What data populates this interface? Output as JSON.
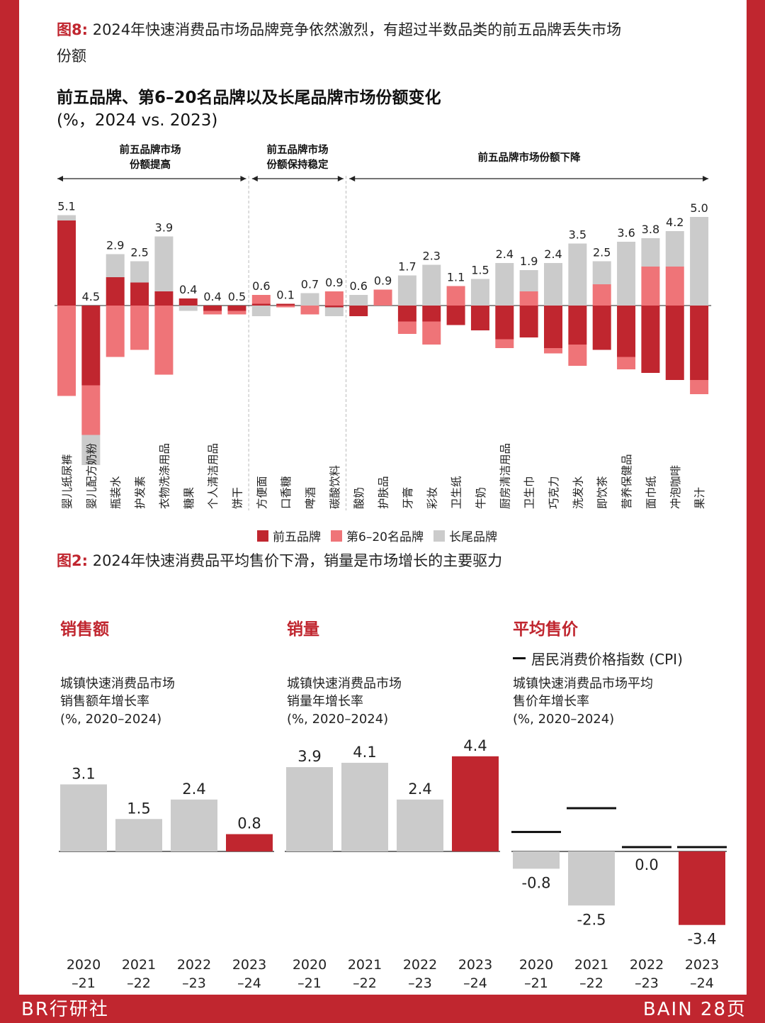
{
  "figure8": {
    "fig_num": "图8:",
    "title_line1": "2024年快速消费品市场品牌竞争依然激烈，有超过半数品类的前五品牌丢失市场",
    "title_line2": "份额",
    "chart_title": "前五品牌、第6–20名品牌以及长尾品牌市场份额变化",
    "chart_subtitle": "(%，2024 vs. 2023)",
    "sections": [
      {
        "line1": "前五品牌市场",
        "line2": "份额提高"
      },
      {
        "line1": "前五品牌市场",
        "line2": "份额保持稳定"
      },
      {
        "line1": "前五品牌市场份额下降",
        "line2": ""
      }
    ],
    "legend": [
      "前五品牌",
      "第6–20名品牌",
      "长尾品牌"
    ]
  },
  "chart_data": [
    {
      "type": "bar",
      "stacked": true,
      "title": "前五品牌、第6–20名品牌以及长尾品牌市场份额变化",
      "subtitle": "(%，2024 vs. 2023)",
      "categories": [
        "婴儿纸尿裤",
        "婴儿配方奶粉",
        "瓶装水",
        "护发素",
        "衣物洗涤用品",
        "糖果",
        "个人清洁用品",
        "饼干",
        "方便面",
        "口香糖",
        "啤酒",
        "碳酸饮料",
        "酸奶",
        "护肤品",
        "牙膏",
        "彩妆",
        "卫生纸",
        "牛奶",
        "厨房清洁用品",
        "卫生巾",
        "巧克力",
        "洗发水",
        "即饮茶",
        "营养保健品",
        "面巾纸",
        "冲泡咖啡",
        "果汁"
      ],
      "gain_labels": [
        5.1,
        4.5,
        2.9,
        2.5,
        3.9,
        0.4,
        0.4,
        0.5,
        0.6,
        0.1,
        0.7,
        0.9,
        0.6,
        0.9,
        1.7,
        2.3,
        1.1,
        1.5,
        2.4,
        1.9,
        2.4,
        3.5,
        2.5,
        3.6,
        3.8,
        4.2,
        5.0
      ],
      "series": [
        {
          "name": "前五品牌",
          "color": "#c0262f",
          "values": [
            4.8,
            -4.5,
            1.6,
            1.3,
            0.8,
            0.4,
            -0.3,
            -0.3,
            0.1,
            0.1,
            0,
            -0.1,
            -0.6,
            0,
            -0.9,
            -0.9,
            -1.1,
            -1.4,
            -1.9,
            -1.8,
            -2.4,
            -2.2,
            -2.5,
            -2.9,
            -3.8,
            -4.2,
            -4.2
          ]
        },
        {
          "name": "第6–20名品牌",
          "color": "#ef7478",
          "values": [
            -5.1,
            -2.8,
            -2.9,
            -2.5,
            -3.9,
            0,
            -0.2,
            -0.2,
            0.5,
            -0.1,
            -0.5,
            0.8,
            0,
            0.9,
            -0.7,
            -1.3,
            1.1,
            0,
            -0.5,
            0.8,
            -0.3,
            -1.2,
            1.2,
            -0.7,
            2.2,
            2.2,
            -0.8
          ]
        },
        {
          "name": "长尾品牌",
          "color": "#cbcbcb",
          "values": [
            0.3,
            -1.7,
            1.3,
            1.2,
            3.1,
            -0.3,
            0,
            0,
            -0.6,
            0,
            0.7,
            -0.5,
            0.6,
            0,
            1.7,
            2.3,
            0,
            1.5,
            2.4,
            1.2,
            2.4,
            3.5,
            1.3,
            3.6,
            1.6,
            2.0,
            5.0
          ]
        }
      ],
      "groups": [
        {
          "label": "前五品牌市场份额提高",
          "count": 8
        },
        {
          "label": "前五品牌市场份额保持稳定",
          "count": 4
        },
        {
          "label": "前五品牌市场份额下降",
          "count": 15
        }
      ]
    },
    {
      "type": "bar",
      "title": "销售额",
      "subtitle": "城镇快速消费品市场销售额年增长率 (%, 2020–2024)",
      "categories": [
        "2020–21",
        "2021–22",
        "2022–23",
        "2023–24"
      ],
      "values": [
        3.1,
        1.5,
        2.4,
        0.8
      ],
      "colors": [
        "#cbcbcb",
        "#cbcbcb",
        "#cbcbcb",
        "#c0262f"
      ]
    },
    {
      "type": "bar",
      "title": "销量",
      "subtitle": "城镇快速消费品市场销量年增长率 (%, 2020–2024)",
      "categories": [
        "2020–21",
        "2021–22",
        "2022–23",
        "2023–24"
      ],
      "values": [
        3.9,
        4.1,
        2.4,
        4.4
      ],
      "colors": [
        "#cbcbcb",
        "#cbcbcb",
        "#cbcbcb",
        "#c0262f"
      ]
    },
    {
      "type": "bar",
      "title": "平均售价",
      "subtitle": "城镇快速消费品市场平均售价年增长率 (%, 2020–2024)",
      "categories": [
        "2020–21",
        "2021–22",
        "2022–23",
        "2023–24"
      ],
      "values": [
        -0.8,
        -2.5,
        0.0,
        -3.4
      ],
      "colors": [
        "#cbcbcb",
        "#cbcbcb",
        "#cbcbcb",
        "#c0262f"
      ],
      "cpi_series": {
        "name": "居民消费价格指数 (CPI)",
        "values": [
          0.9,
          2.0,
          0.2,
          0.2
        ]
      }
    }
  ],
  "figure2": {
    "fig_num": "图2:",
    "title": "2024年快速消费品平均售价下滑，销量是市场增长的主要驱力",
    "panels": [
      {
        "title": "销售额",
        "sub1": "城镇快速消费品市场",
        "sub2": "销售额年增长率",
        "sub3": "(%, 2020–2024)"
      },
      {
        "title": "销量",
        "sub1": "城镇快速消费品市场",
        "sub2": "销量年增长率",
        "sub3": "(%, 2020–2024)"
      },
      {
        "title": "平均售价",
        "sub1": "城镇快速消费品市场平均",
        "sub2": "售价年增长率",
        "sub3": "(%, 2020–2024)"
      }
    ],
    "cpi_legend": "居民消费价格指数 (CPI)",
    "year_top": [
      "2020",
      "2021",
      "2022",
      "2023"
    ],
    "year_bottom": [
      "–21",
      "–22",
      "–23",
      "–24"
    ]
  },
  "footer": {
    "left": "BR行研社",
    "right": "BAIN 28页"
  }
}
